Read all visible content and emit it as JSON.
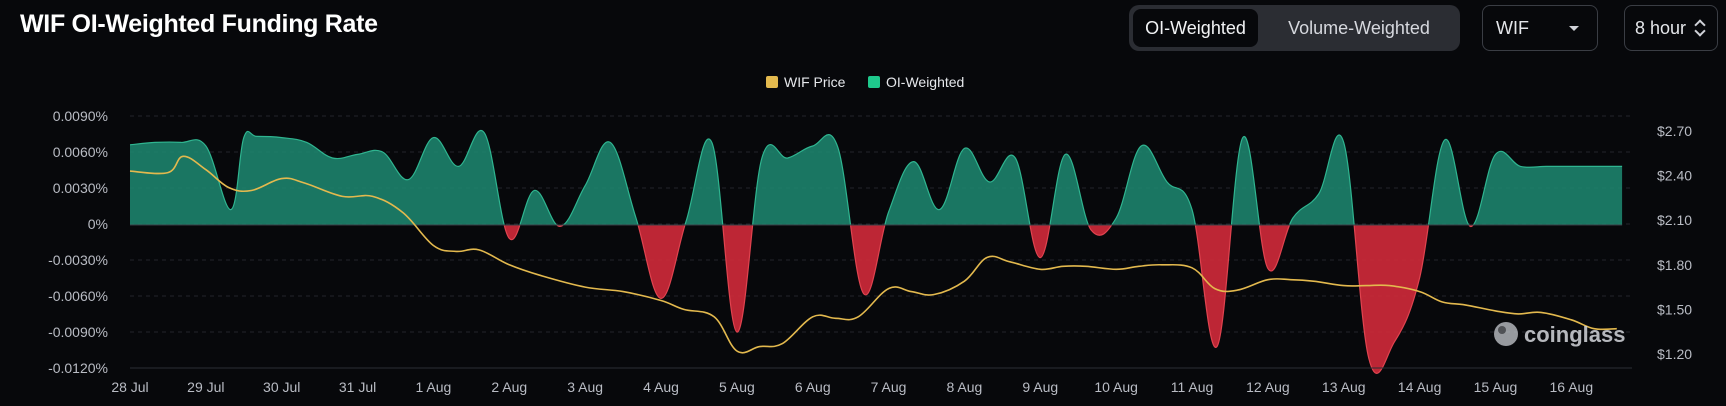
{
  "header": {
    "title": "WIF OI-Weighted Funding Rate",
    "toggle": [
      "OI-Weighted",
      "Volume-Weighted"
    ],
    "active_toggle": "OI-Weighted",
    "symbol_select": "WIF",
    "interval_select": "8 hour"
  },
  "watermark": "coinglass",
  "colors": {
    "positive": "#1d8a72",
    "negative": "#d12a3a",
    "price": "#e3b94e",
    "legend_oi": "#1ec98c"
  },
  "chart_data": {
    "type": "area",
    "title": "WIF OI-Weighted Funding Rate",
    "legend": [
      "WIF Price",
      "OI-Weighted"
    ],
    "legend_position": "top-center",
    "grid": true,
    "x_ticks": [
      "28 Jul",
      "29 Jul",
      "30 Jul",
      "31 Jul",
      "1 Aug",
      "2 Aug",
      "3 Aug",
      "4 Aug",
      "5 Aug",
      "6 Aug",
      "7 Aug",
      "8 Aug",
      "9 Aug",
      "10 Aug",
      "11 Aug",
      "12 Aug",
      "13 Aug",
      "14 Aug",
      "15 Aug",
      "16 Aug"
    ],
    "x_range": [
      0,
      19.8
    ],
    "y_left": {
      "ticks": [
        "0.0090%",
        "0.0060%",
        "0.0030%",
        "0%",
        "-0.0030%",
        "-0.0060%",
        "-0.0090%",
        "-0.0120%"
      ],
      "range": [
        -0.012,
        0.009
      ]
    },
    "y_right": {
      "ticks": [
        "$2.70",
        "$2.40",
        "$2.10",
        "$1.80",
        "$1.50",
        "$1.20"
      ],
      "range": [
        1.2,
        2.7
      ]
    },
    "series": [
      {
        "name": "OI-Weighted",
        "unit": "%",
        "x": [
          0,
          0.33,
          0.67,
          1,
          1.33,
          1.5,
          1.67,
          2,
          2.33,
          2.67,
          3,
          3.33,
          3.67,
          4,
          4.33,
          4.67,
          5,
          5.33,
          5.67,
          6,
          6.33,
          6.67,
          7,
          7.33,
          7.67,
          8,
          8.33,
          8.67,
          9,
          9.33,
          9.67,
          10,
          10.33,
          10.67,
          11,
          11.33,
          11.67,
          12,
          12.33,
          12.67,
          13,
          13.33,
          13.67,
          14,
          14.33,
          14.67,
          15,
          15.33,
          15.67,
          16,
          16.33,
          16.67,
          17,
          17.33,
          17.67,
          18,
          18.33,
          18.67,
          19,
          19.33,
          19.67
        ],
        "y": [
          0.0066,
          0.0068,
          0.0068,
          0.0065,
          0.0012,
          0.0072,
          0.0073,
          0.0072,
          0.0068,
          0.0055,
          0.0058,
          0.006,
          0.0037,
          0.0072,
          0.0048,
          0.0076,
          -0.0012,
          0.0028,
          -0.0002,
          0.0032,
          0.0068,
          0.0005,
          -0.0062,
          0.0002,
          0.0068,
          -0.009,
          0.0055,
          0.0055,
          0.0065,
          0.0064,
          -0.0058,
          0.001,
          0.0052,
          0.0012,
          0.0063,
          0.0035,
          0.0055,
          -0.0028,
          0.0058,
          -0.0005,
          0.0005,
          0.0065,
          0.0035,
          0.0012,
          -0.0102,
          0.0072,
          -0.0037,
          0.0005,
          0.0025,
          0.0068,
          -0.0112,
          -0.0098,
          -0.0045,
          0.007,
          -0.0002,
          0.0058,
          0.0048,
          0.0048,
          0.0048,
          0.0048,
          0.0048
        ]
      },
      {
        "name": "WIF Price",
        "unit": "$",
        "x": [
          0,
          0.5,
          0.7,
          1,
          1.3,
          1.6,
          2,
          2.3,
          2.8,
          3.2,
          3.6,
          4,
          4.3,
          4.6,
          5,
          5.4,
          6,
          6.5,
          7,
          7.3,
          7.7,
          8,
          8.3,
          8.6,
          9,
          9.3,
          9.6,
          10,
          10.3,
          10.6,
          11,
          11.3,
          11.6,
          12,
          12.3,
          12.6,
          13,
          13.3,
          13.6,
          14,
          14.3,
          14.6,
          15,
          15.3,
          15.6,
          16,
          16.3,
          16.6,
          17,
          17.3,
          17.6,
          18,
          18.3,
          18.6,
          19,
          19.3,
          19.6
        ],
        "y": [
          2.43,
          2.42,
          2.53,
          2.44,
          2.32,
          2.3,
          2.38,
          2.35,
          2.26,
          2.26,
          2.15,
          1.93,
          1.89,
          1.9,
          1.8,
          1.73,
          1.65,
          1.62,
          1.56,
          1.5,
          1.45,
          1.22,
          1.25,
          1.27,
          1.45,
          1.44,
          1.45,
          1.64,
          1.62,
          1.6,
          1.69,
          1.85,
          1.82,
          1.77,
          1.79,
          1.79,
          1.77,
          1.79,
          1.8,
          1.78,
          1.64,
          1.63,
          1.7,
          1.7,
          1.69,
          1.66,
          1.66,
          1.66,
          1.62,
          1.55,
          1.53,
          1.49,
          1.47,
          1.48,
          1.43,
          1.37,
          1.37
        ]
      }
    ]
  }
}
